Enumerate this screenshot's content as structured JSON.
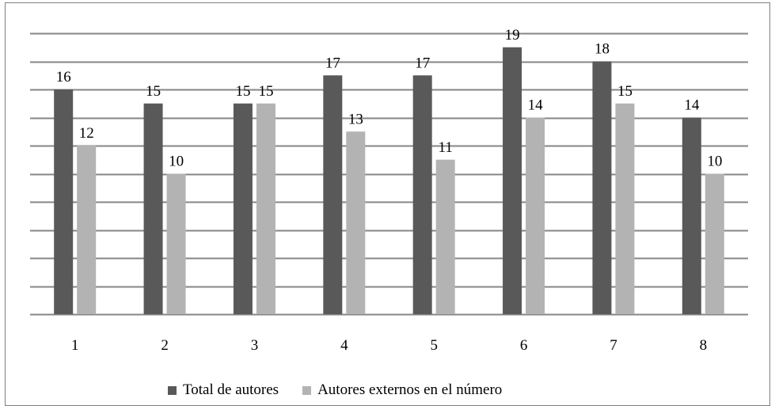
{
  "chart_data": {
    "type": "bar",
    "categories": [
      "1",
      "2",
      "3",
      "4",
      "5",
      "6",
      "7",
      "8"
    ],
    "series": [
      {
        "name": "Total de autores",
        "values": [
          16,
          15,
          15,
          17,
          17,
          19,
          18,
          14
        ],
        "color": "#595959"
      },
      {
        "name": "Autores externos en el número",
        "values": [
          12,
          10,
          15,
          13,
          11,
          14,
          15,
          10
        ],
        "color": "#b3b3b3"
      }
    ],
    "data_labels": [
      [
        "16",
        "15",
        "15",
        "17",
        "17",
        "19",
        "18",
        "14"
      ],
      [
        "12",
        "10",
        "15",
        "13",
        "11",
        "14",
        "15",
        "10"
      ]
    ],
    "ylim": [
      0,
      20
    ],
    "y_gridline_step": 2,
    "grid": true,
    "gridline_color": "#868686",
    "legend_position": "bottom",
    "title": "",
    "xlabel": "",
    "ylabel": ""
  }
}
